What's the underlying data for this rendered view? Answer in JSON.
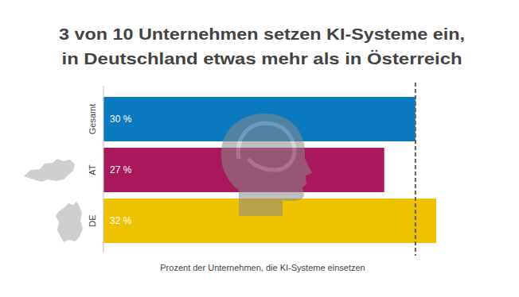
{
  "chart_data": {
    "type": "bar",
    "orientation": "horizontal",
    "title": "3 von 10 Unternehmen setzen KI-Systeme ein,\nin Deutschland etwas mehr als in Österreich",
    "x_label": "Prozent der Unternehmen, die KI-Systeme einsetzen",
    "categories": [
      "Gesamt",
      "AT",
      "DE"
    ],
    "values": [
      30,
      27,
      32
    ],
    "value_labels": [
      "30 %",
      "27 %",
      "32 %"
    ],
    "colors": [
      "#0a79bf",
      "#a8185a",
      "#efc200"
    ],
    "xlim": [
      0,
      32
    ],
    "xticks": [],
    "tick_labels": false,
    "data_labels": true,
    "grid": false
  }
}
